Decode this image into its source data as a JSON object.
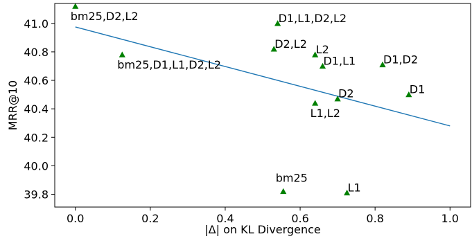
{
  "chart_data": {
    "type": "scatter",
    "xlabel": "|Δ| on KL Divergence",
    "ylabel": "MRR@10",
    "xlim": [
      -0.055,
      1.055
    ],
    "ylim": [
      39.71,
      41.14
    ],
    "x_ticks": [
      "0.0",
      "0.2",
      "0.4",
      "0.6",
      "0.8",
      "1.0"
    ],
    "x_tick_values": [
      0.0,
      0.2,
      0.4,
      0.6,
      0.8,
      1.0
    ],
    "y_ticks": [
      "39.8",
      "40.0",
      "40.2",
      "40.4",
      "40.6",
      "40.8",
      "41.0"
    ],
    "y_tick_values": [
      39.8,
      40.0,
      40.2,
      40.4,
      40.6,
      40.8,
      41.0
    ],
    "grid": false,
    "marker": "triangle",
    "marker_color": "#008000",
    "line_color": "#1f77b4",
    "points": [
      {
        "label": "bm25,D2,L2",
        "x": 0.0,
        "y": 41.12,
        "label_pos": "below"
      },
      {
        "label": "bm25,D1,L1,D2,L2",
        "x": 0.125,
        "y": 40.78,
        "label_pos": "below"
      },
      {
        "label": "D1,L1,D2,L2",
        "x": 0.54,
        "y": 41.0,
        "label_pos": "right"
      },
      {
        "label": "D2,L2",
        "x": 0.53,
        "y": 40.82,
        "label_pos": "right"
      },
      {
        "label": "L2",
        "x": 0.64,
        "y": 40.78,
        "label_pos": "right"
      },
      {
        "label": "D1,L1",
        "x": 0.66,
        "y": 40.7,
        "label_pos": "right"
      },
      {
        "label": "D1,D2",
        "x": 0.82,
        "y": 40.71,
        "label_pos": "right"
      },
      {
        "label": "D1",
        "x": 0.89,
        "y": 40.5,
        "label_pos": "right"
      },
      {
        "label": "D2",
        "x": 0.7,
        "y": 40.47,
        "label_pos": "right"
      },
      {
        "label": "L1,L2",
        "x": 0.64,
        "y": 40.44,
        "label_pos": "below"
      },
      {
        "label": "bm25",
        "x": 0.555,
        "y": 39.82,
        "label_pos": "above"
      },
      {
        "label": "L1",
        "x": 0.725,
        "y": 39.81,
        "label_pos": "right"
      }
    ],
    "trend_line": {
      "x": [
        0.0,
        1.0
      ],
      "y": [
        40.975,
        40.28
      ]
    }
  }
}
